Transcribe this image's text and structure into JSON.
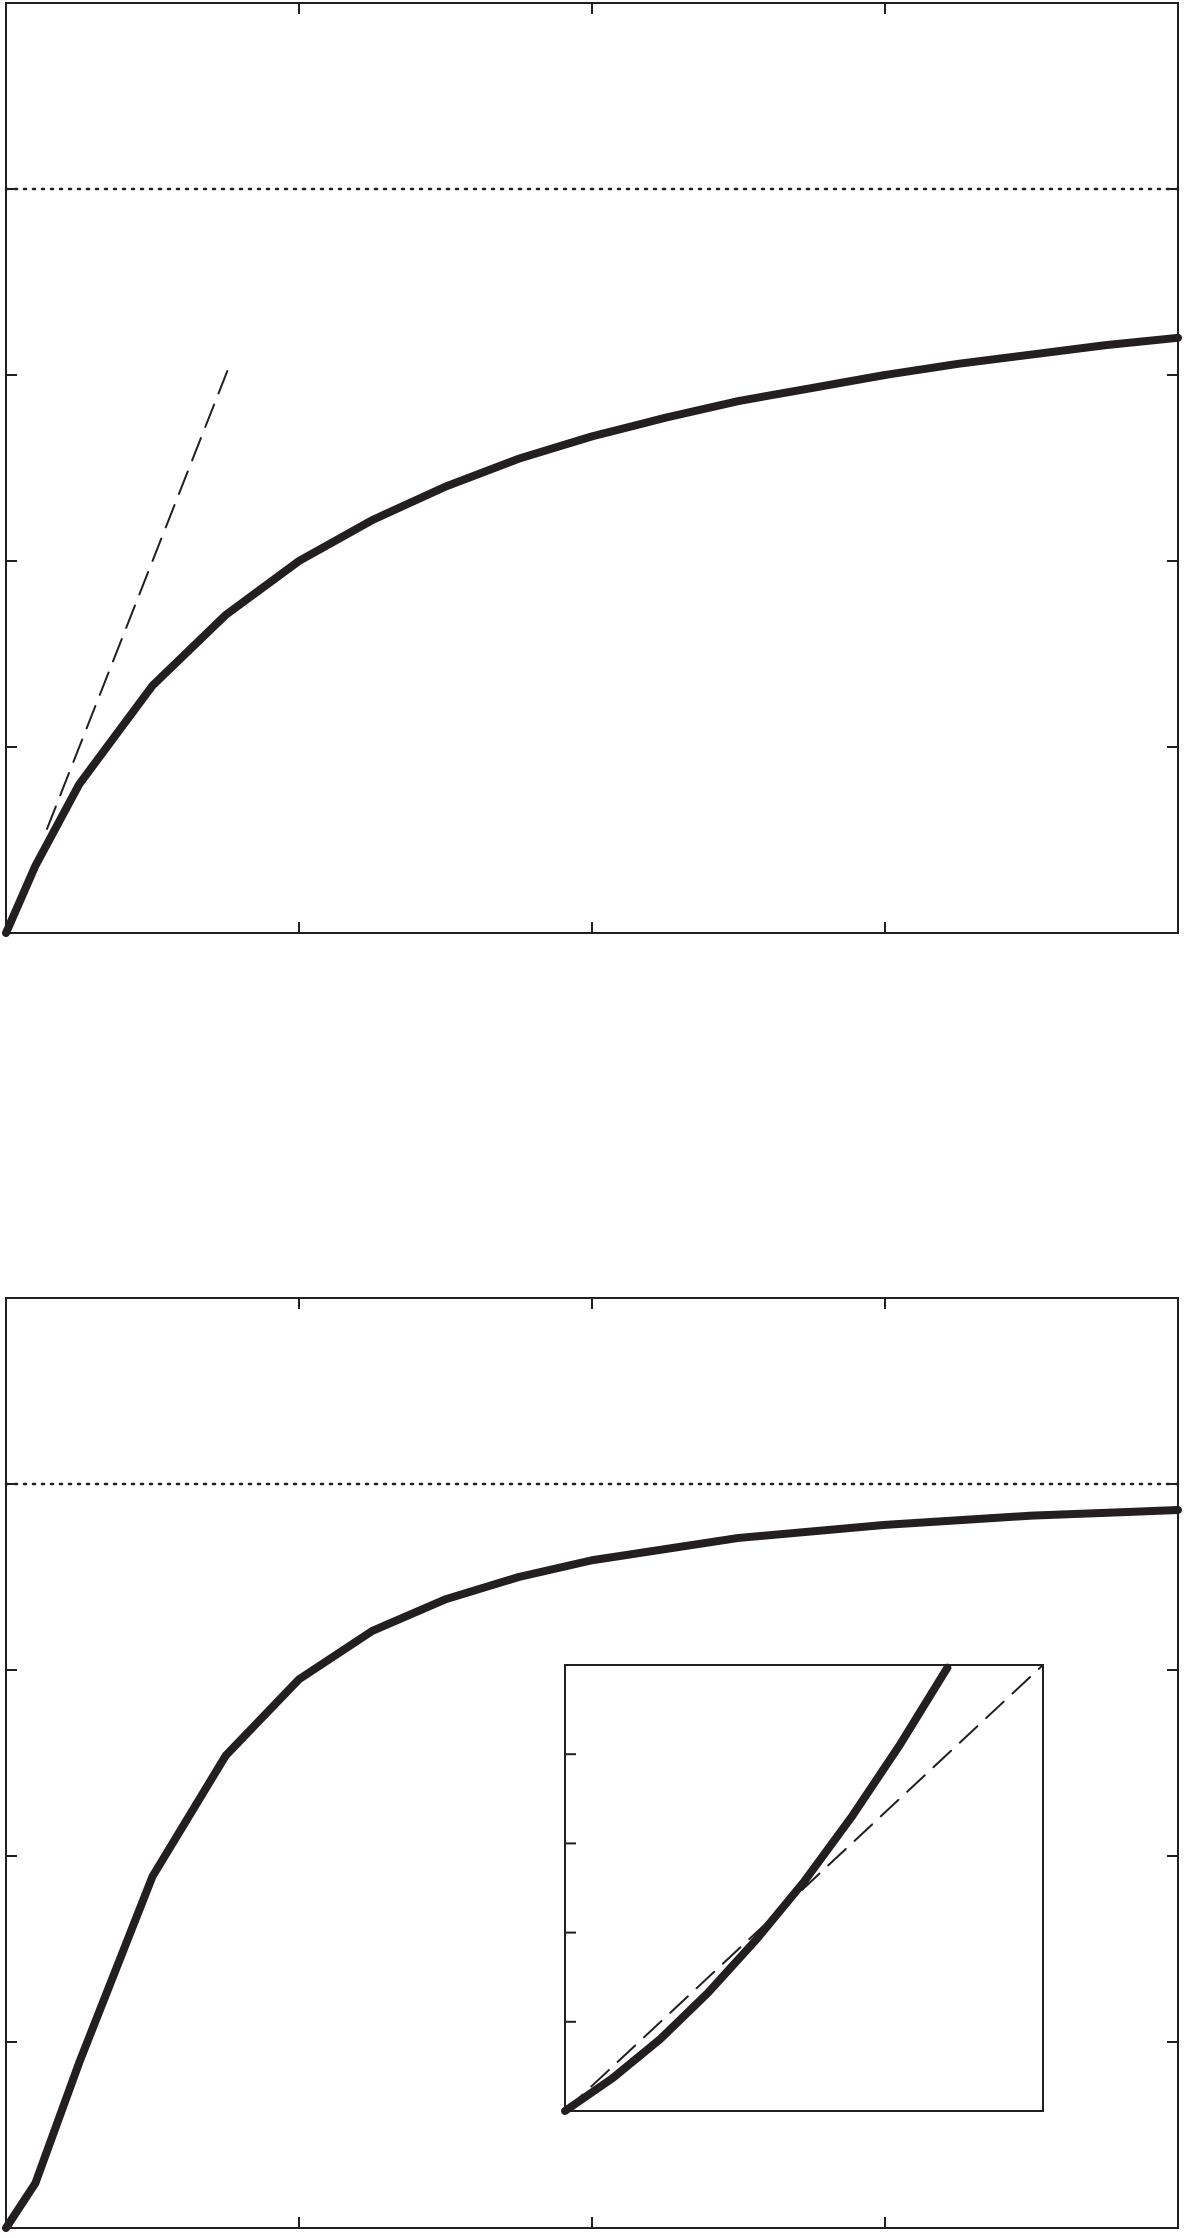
{
  "chart_data": [
    {
      "type": "line",
      "xlim": [
        0,
        4
      ],
      "ylim": [
        0,
        5
      ],
      "xticks": [
        0,
        1,
        2,
        3,
        4
      ],
      "yticks": [
        0,
        1,
        2,
        3,
        4,
        5
      ],
      "mirror_ticks": true,
      "hline": 4,
      "series": [
        {
          "color": "#231f20",
          "width": 8,
          "dash": "solid",
          "x": [
            0,
            0.1,
            0.25,
            0.5,
            0.75,
            1,
            1.25,
            1.5,
            1.75,
            2,
            2.25,
            2.5,
            2.75,
            3,
            3.25,
            3.5,
            3.75,
            4
          ],
          "values": [
            0,
            0.36,
            0.8,
            1.33,
            1.71,
            2,
            2.22,
            2.4,
            2.55,
            2.67,
            2.77,
            2.86,
            2.93,
            3,
            3.06,
            3.11,
            3.16,
            3.2
          ]
        },
        {
          "color": "#231f20",
          "width": 2,
          "dash": "dashed",
          "x": [
            0.14,
            0.77
          ],
          "values": [
            0.56,
            3.08
          ]
        }
      ]
    },
    {
      "type": "line",
      "xlim": [
        0,
        4
      ],
      "ylim": [
        0,
        5
      ],
      "xticks": [
        0,
        1,
        2,
        3,
        4
      ],
      "yticks": [
        0,
        1,
        2,
        3,
        4,
        5
      ],
      "mirror_ticks": true,
      "hline": 4,
      "series": [
        {
          "color": "#231f20",
          "width": 8,
          "dash": "solid",
          "x": [
            0,
            0.1,
            0.25,
            0.5,
            0.75,
            1,
            1.25,
            1.5,
            1.75,
            2,
            2.5,
            3,
            3.5,
            4
          ],
          "values": [
            0,
            0.24,
            0.89,
            1.89,
            2.54,
            2.95,
            3.21,
            3.38,
            3.5,
            3.59,
            3.71,
            3.78,
            3.83,
            3.86
          ]
        }
      ]
    },
    {
      "type": "line",
      "xlim": [
        0,
        1
      ],
      "ylim": [
        0,
        5
      ],
      "yticks": [
        0,
        1,
        2,
        3,
        4,
        5
      ],
      "mirror_ticks": false,
      "series": [
        {
          "color": "#231f20",
          "width": 8,
          "dash": "solid",
          "x": [
            0,
            0.1,
            0.2,
            0.3,
            0.4,
            0.5,
            0.6,
            0.7,
            0.8
          ],
          "values": [
            0,
            0.37,
            0.81,
            1.33,
            1.92,
            2.57,
            3.3,
            4.1,
            4.97
          ]
        },
        {
          "color": "#231f20",
          "width": 2,
          "dash": "dashed",
          "x": [
            0,
            1
          ],
          "values": [
            0,
            5
          ]
        }
      ]
    }
  ]
}
